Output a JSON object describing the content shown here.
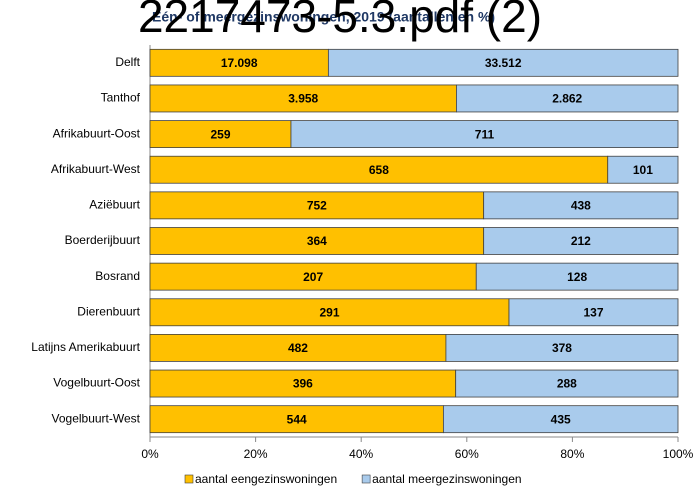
{
  "chart_data": {
    "type": "bar",
    "orientation": "horizontal",
    "stacked_percent": true,
    "title": "Eén- of meergezinswoningen, 2019 (aantallen en %)",
    "overlay_text": "2217473-5.3.pdf (2)",
    "categories": [
      "Delft",
      "Tanthof",
      "Afrikabuurt-Oost",
      "Afrikabuurt-West",
      "Aziëbuurt",
      "Boerderijbuurt",
      "Bosrand",
      "Dierenbuurt",
      "Latijns Amerikabuurt",
      "Vogelbuurt-Oost",
      "Vogelbuurt-West"
    ],
    "series": [
      {
        "name": "aantal eengezinswoningen",
        "color": "#FFC000",
        "values": [
          17098,
          3958,
          259,
          658,
          752,
          364,
          207,
          291,
          482,
          396,
          544
        ],
        "value_labels": [
          "17.098",
          "3.958",
          "259",
          "658",
          "752",
          "364",
          "207",
          "291",
          "482",
          "396",
          "544"
        ]
      },
      {
        "name": "aantal meergezinswoningen",
        "color": "#A9CBEC",
        "values": [
          33512,
          2862,
          711,
          101,
          438,
          212,
          128,
          137,
          378,
          288,
          435
        ],
        "value_labels": [
          "33.512",
          "2.862",
          "711",
          "101",
          "438",
          "212",
          "128",
          "137",
          "378",
          "288",
          "435"
        ]
      }
    ],
    "xlim": [
      0,
      100
    ],
    "xticks": [
      {
        "value": 0,
        "label": "0%"
      },
      {
        "value": 20,
        "label": "20%"
      },
      {
        "value": 40,
        "label": "40%"
      },
      {
        "value": 60,
        "label": "60%"
      },
      {
        "value": 80,
        "label": "80%"
      },
      {
        "value": 100,
        "label": "100%"
      }
    ],
    "legend": "bottom"
  }
}
